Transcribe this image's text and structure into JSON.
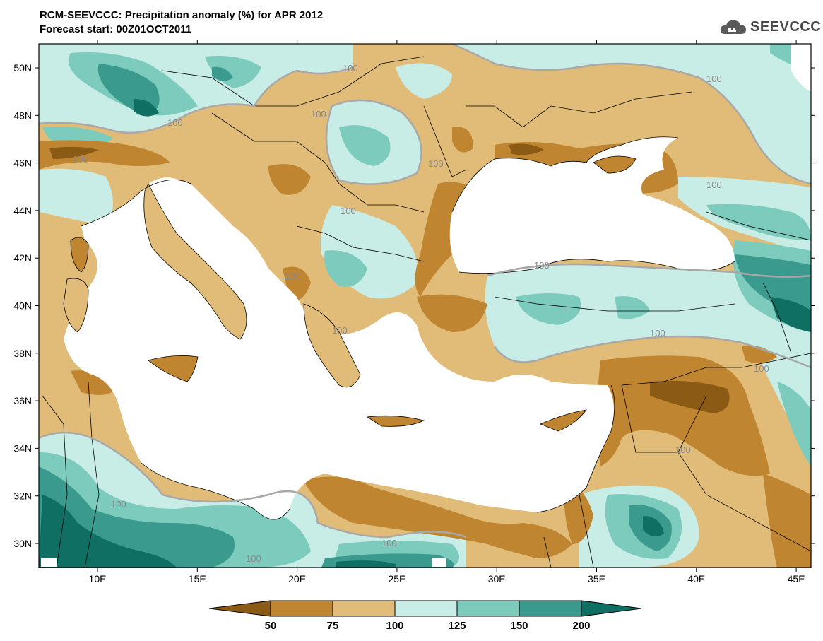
{
  "header": {
    "title_line1": "RCM-SEEVCCC: Precipitation anomaly (%) for APR 2012",
    "title_line2": "Forecast start: 00Z01OCT2011"
  },
  "logo": {
    "text": "SEEVCCC",
    "icon": "cloud-icon"
  },
  "map": {
    "lon_ticks": [
      "10E",
      "15E",
      "20E",
      "25E",
      "30E",
      "35E",
      "40E",
      "45E"
    ],
    "lat_ticks": [
      "50N",
      "48N",
      "46N",
      "44N",
      "42N",
      "40N",
      "38N",
      "36N",
      "34N",
      "32N",
      "30N"
    ],
    "contour_labels": [
      "100",
      "100",
      "100",
      "100",
      "100",
      "100",
      "100",
      "100",
      "100",
      "100",
      "100",
      "100",
      "100",
      "100",
      "100",
      "100",
      "100"
    ]
  },
  "legend": {
    "labels": [
      "50",
      "75",
      "100",
      "125",
      "150",
      "200"
    ],
    "colors": {
      "c_lt50": "#8b5a14",
      "c_50_75": "#c08530",
      "c_75_100": "#e0bc78",
      "c_100_125": "#c8ece6",
      "c_125_150": "#7ccbbd",
      "c_150_200": "#3b9a8e",
      "c_gt200": "#0f6f62"
    }
  }
}
